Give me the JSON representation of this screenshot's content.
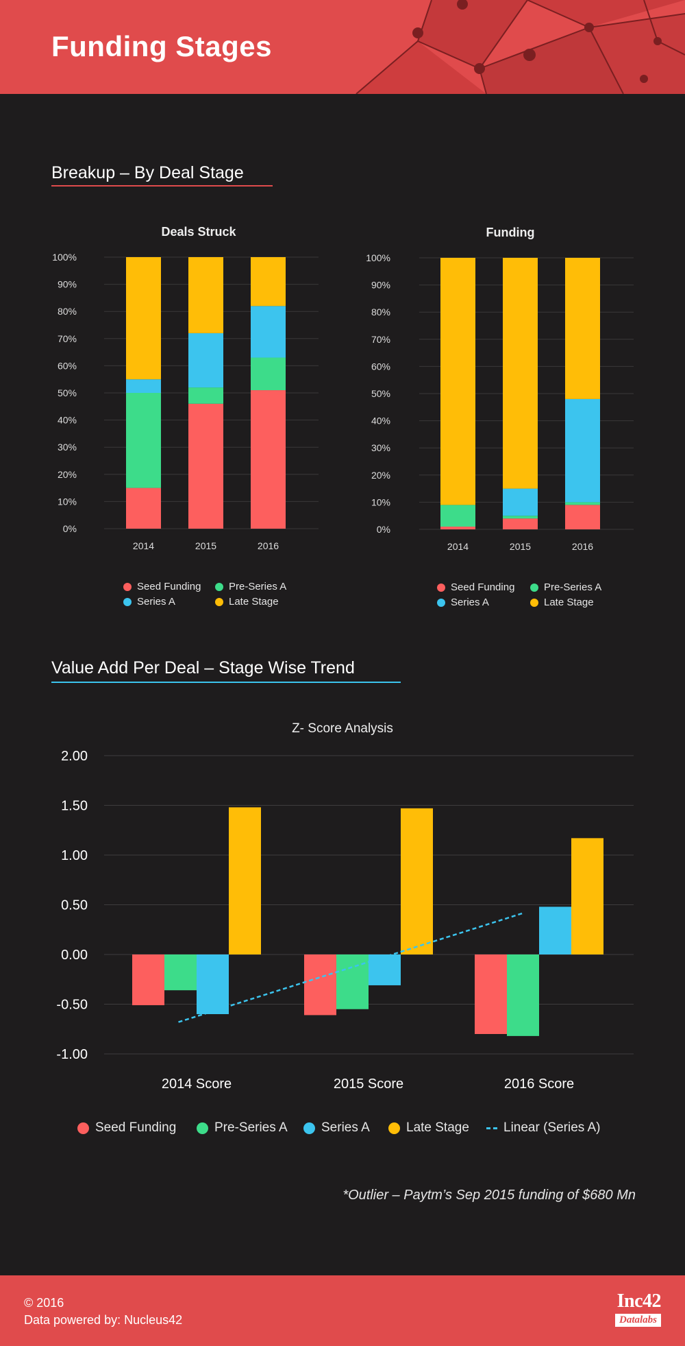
{
  "header": {
    "title": "Funding Stages"
  },
  "sections": {
    "breakup_title": "Breakup – By Deal Stage",
    "value_title": "Value Add Per Deal – Stage Wise Trend"
  },
  "colors": {
    "seed": "#fd5f5e",
    "pre_series_a": "#3ddc8a",
    "series_a": "#3cc4ee",
    "late_stage": "#ffbd07",
    "header": "#e04b4c",
    "background": "#1e1c1d"
  },
  "legend_small": {
    "seed": "Seed Funding",
    "pre": "Pre-Series A",
    "series_a": "Series A",
    "late": "Late Stage"
  },
  "legend_big": {
    "seed": "Seed Funding",
    "pre": "Pre-Series A",
    "series_a": "Series A",
    "late": "Late Stage",
    "trend": "Linear (Series A)"
  },
  "chart_data": [
    {
      "type": "bar",
      "stacked": true,
      "title": "Deals Struck",
      "categories": [
        "2014",
        "2015",
        "2016"
      ],
      "yticks": [
        "0%",
        "10%",
        "20%",
        "30%",
        "40%",
        "50%",
        "60%",
        "70%",
        "80%",
        "90%",
        "100%"
      ],
      "ylim": [
        0,
        100
      ],
      "series": [
        {
          "name": "Seed Funding",
          "values": [
            15,
            46,
            51
          ]
        },
        {
          "name": "Pre-Series A",
          "values": [
            35,
            6,
            12
          ]
        },
        {
          "name": "Series A",
          "values": [
            5,
            20,
            19
          ]
        },
        {
          "name": "Late Stage",
          "values": [
            45,
            28,
            18
          ]
        }
      ],
      "legend": "bottom"
    },
    {
      "type": "bar",
      "stacked": true,
      "title": "Funding",
      "categories": [
        "2014",
        "2015",
        "2016"
      ],
      "yticks": [
        "0%",
        "10%",
        "20%",
        "30%",
        "40%",
        "50%",
        "60%",
        "70%",
        "80%",
        "90%",
        "100%"
      ],
      "ylim": [
        0,
        100
      ],
      "series": [
        {
          "name": "Seed Funding",
          "values": [
            1,
            4,
            9
          ]
        },
        {
          "name": "Pre-Series A",
          "values": [
            8,
            1,
            1
          ]
        },
        {
          "name": "Series A",
          "values": [
            0,
            10,
            38
          ]
        },
        {
          "name": "Late Stage",
          "values": [
            91,
            85,
            52
          ]
        }
      ],
      "legend": "bottom"
    },
    {
      "type": "bar",
      "title": "Z- Score Analysis",
      "categories": [
        "2014 Score",
        "2015 Score",
        "2016 Score"
      ],
      "yticks": [
        "-1.00",
        "-0.50",
        "0.00",
        "0.50",
        "1.00",
        "1.50",
        "2.00"
      ],
      "ylim": [
        -1,
        2
      ],
      "series": [
        {
          "name": "Seed Funding",
          "values": [
            -0.51,
            -0.61,
            -0.8
          ]
        },
        {
          "name": "Pre-Series A",
          "values": [
            -0.36,
            -0.55,
            -0.82
          ]
        },
        {
          "name": "Series A",
          "values": [
            -0.6,
            -0.31,
            0.48
          ]
        },
        {
          "name": "Late Stage",
          "values": [
            1.48,
            1.47,
            1.17
          ]
        }
      ],
      "trendline": {
        "name": "Linear (Series A)",
        "from": [
          0,
          -0.68
        ],
        "to": [
          2,
          0.42
        ]
      },
      "legend": "bottom"
    }
  ],
  "footnote": "*Outlier – Paytm’s Sep 2015 funding of $680 Mn",
  "footer": {
    "copyright": "© 2016",
    "powered": "Data powered by: Nucleus42",
    "logo_brand": "Inc42",
    "logo_sub": "Datalabs"
  }
}
